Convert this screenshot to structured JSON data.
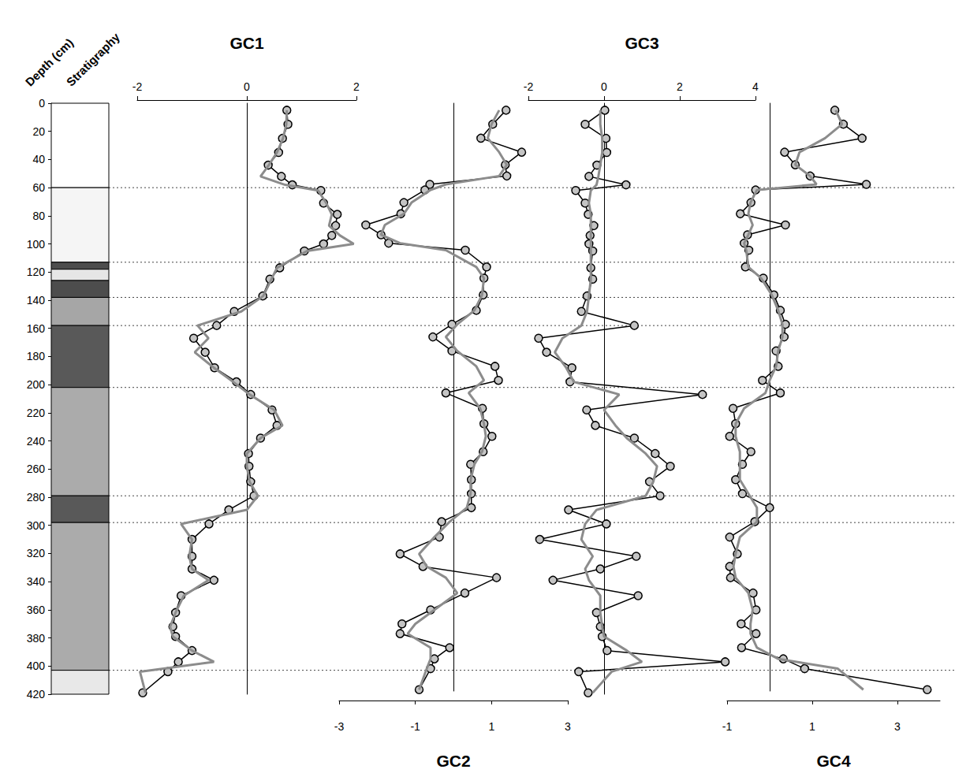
{
  "chart_data": {
    "type": "line",
    "y_label": "Depth (cm)",
    "column_label": "Stratigraphy",
    "ylim": [
      0,
      420
    ],
    "yticks": [
      0,
      20,
      40,
      60,
      80,
      100,
      120,
      140,
      160,
      180,
      200,
      220,
      240,
      260,
      280,
      300,
      320,
      340,
      360,
      380,
      400,
      420
    ],
    "grid": false,
    "y": [
      5,
      15,
      25,
      35,
      44,
      52,
      58,
      62,
      71,
      79,
      87,
      94,
      100,
      105,
      117,
      125,
      137,
      148,
      158,
      167,
      177,
      188,
      198,
      207,
      218,
      229,
      238,
      249,
      258,
      269,
      279,
      289,
      299,
      310,
      322,
      331,
      339,
      350,
      362,
      372,
      379,
      389,
      397,
      404,
      419
    ],
    "boundaries": [
      60,
      113,
      138,
      158,
      202,
      279,
      298,
      403
    ],
    "strata": [
      {
        "top": 0,
        "bottom": 60,
        "color": "#ffffff"
      },
      {
        "top": 60,
        "bottom": 113,
        "color": "#f5f5f5"
      },
      {
        "top": 113,
        "bottom": 118,
        "color": "#4d4d4d"
      },
      {
        "top": 118,
        "bottom": 126,
        "color": "#e6e6e6"
      },
      {
        "top": 126,
        "bottom": 138,
        "color": "#4d4d4d"
      },
      {
        "top": 138,
        "bottom": 158,
        "color": "#a6a6a6"
      },
      {
        "top": 158,
        "bottom": 202,
        "color": "#595959"
      },
      {
        "top": 202,
        "bottom": 279,
        "color": "#ababab"
      },
      {
        "top": 279,
        "bottom": 298,
        "color": "#595959"
      },
      {
        "top": 298,
        "bottom": 403,
        "color": "#ababab"
      },
      {
        "top": 403,
        "bottom": 420,
        "color": "#e8e8e8"
      }
    ],
    "panels": [
      {
        "title": "GC1",
        "xlim": [
          -2,
          2
        ],
        "xticks": [
          -2,
          0,
          2
        ],
        "series": [
          {
            "color": "#000000",
            "marker": "circle",
            "line_style": "solid",
            "values": [
              0.73,
              0.75,
              0.65,
              0.58,
              0.39,
              0.63,
              0.83,
              1.35,
              1.4,
              1.65,
              1.62,
              1.55,
              1.4,
              1.05,
              0.6,
              0.42,
              0.29,
              -0.23,
              -0.55,
              -0.97,
              -0.76,
              -0.59,
              -0.19,
              0.07,
              0.46,
              0.55,
              0.25,
              0.03,
              0.04,
              0.07,
              0.13,
              -0.33,
              -0.69,
              -1.0,
              -1.0,
              -1.0,
              -0.6,
              -1.2,
              -1.3,
              -1.35,
              -1.3,
              -1.0,
              -1.25,
              -1.44,
              -1.9
            ]
          },
          {
            "color": "#8c8c8c",
            "marker": "none",
            "line_style": "solid",
            "values": [
              0.73,
              0.72,
              0.66,
              0.55,
              0.4,
              0.25,
              0.7,
              1.3,
              1.45,
              1.55,
              1.5,
              1.7,
              1.95,
              1.1,
              0.55,
              0.45,
              0.3,
              -0.1,
              -0.9,
              -0.7,
              -0.95,
              -0.6,
              -0.25,
              0.05,
              0.5,
              0.65,
              0.25,
              0.0,
              0.0,
              0.05,
              0.2,
              0.0,
              -1.2,
              -1.0,
              -1.05,
              -1.0,
              -0.7,
              -1.15,
              -1.3,
              -1.4,
              -1.35,
              -1.0,
              -0.6,
              -1.95,
              -1.85
            ]
          }
        ]
      },
      {
        "title": "GC2",
        "xlim": [
          -3,
          3
        ],
        "xticks": [
          -3,
          -1,
          1,
          3
        ],
        "series": [
          {
            "color": "#000000",
            "marker": "circle",
            "line_style": "solid",
            "values": [
              1.38,
              1.03,
              0.72,
              1.79,
              1.36,
              1.4,
              -0.62,
              -0.75,
              -1.3,
              -1.38,
              -2.3,
              -1.9,
              -1.7,
              0.31,
              0.87,
              0.8,
              0.78,
              0.6,
              -0.04,
              -0.54,
              -0.04,
              1.09,
              1.18,
              -0.2,
              0.76,
              0.8,
              1.01,
              0.78,
              0.45,
              0.47,
              0.47,
              0.47,
              -0.31,
              -0.37,
              -1.4,
              -0.8,
              1.13,
              0.3,
              -0.6,
              -1.35,
              -1.4,
              -0.1,
              -0.5,
              -0.6,
              -0.9
            ]
          },
          {
            "color": "#8c8c8c",
            "marker": "none",
            "line_style": "solid",
            "values": [
              1.2,
              1.0,
              0.9,
              1.2,
              1.4,
              1.2,
              -0.2,
              -0.6,
              -1.1,
              -1.3,
              -1.8,
              -1.9,
              -1.4,
              -0.2,
              0.6,
              0.8,
              0.75,
              0.55,
              0.1,
              -0.2,
              0.1,
              0.6,
              0.8,
              0.4,
              0.7,
              0.8,
              0.85,
              0.75,
              0.55,
              0.45,
              0.45,
              0.35,
              -0.1,
              -0.5,
              -0.9,
              -0.7,
              -0.2,
              0.1,
              -0.5,
              -1.0,
              -1.2,
              -0.6,
              -0.6,
              -0.7,
              -0.9
            ]
          }
        ]
      },
      {
        "title": "GC3",
        "xlim": [
          -2,
          4
        ],
        "xticks": [
          -2,
          0,
          2,
          4
        ],
        "series": [
          {
            "color": "#000000",
            "marker": "circle",
            "line_style": "solid",
            "values": [
              0.02,
              -0.5,
              0.05,
              0.07,
              -0.19,
              -0.4,
              0.58,
              -0.75,
              -0.5,
              -0.42,
              -0.27,
              -0.37,
              -0.4,
              -0.3,
              -0.35,
              -0.3,
              -0.45,
              -0.6,
              0.8,
              -1.73,
              -1.52,
              -0.85,
              -0.9,
              2.6,
              -0.46,
              -0.23,
              0.8,
              1.35,
              1.75,
              1.2,
              1.48,
              -0.94,
              0.06,
              -1.7,
              0.85,
              -0.1,
              -1.35,
              0.9,
              -0.2,
              -0.1,
              -0.05,
              0.08,
              3.2,
              -0.67,
              -0.42
            ]
          },
          {
            "color": "#8c8c8c",
            "marker": "none",
            "line_style": "solid",
            "values": [
              -0.1,
              -0.1,
              -0.05,
              -0.05,
              -0.1,
              -0.15,
              -0.2,
              -0.35,
              -0.4,
              -0.35,
              -0.35,
              -0.35,
              -0.35,
              -0.35,
              -0.35,
              -0.35,
              -0.4,
              -0.45,
              -0.6,
              -1.1,
              -1.3,
              -1.0,
              -0.8,
              0.4,
              0.0,
              0.3,
              0.6,
              1.1,
              1.4,
              1.3,
              1.1,
              -0.2,
              -0.5,
              -0.6,
              -0.3,
              -0.5,
              -0.4,
              -0.1,
              -0.1,
              -0.05,
              0.0,
              0.6,
              1.0,
              0.2,
              -0.3
            ]
          }
        ]
      },
      {
        "title": "GC4",
        "xlim": [
          -1,
          4
        ],
        "xticks": [
          -1,
          1,
          3
        ],
        "series": [
          {
            "color": "#000000",
            "marker": "circle",
            "line_style": "solid",
            "values": [
              1.53,
              1.73,
              2.17,
              0.35,
              0.6,
              0.95,
              2.27,
              -0.33,
              -0.44,
              -0.69,
              0.37,
              -0.52,
              -0.6,
              -0.49,
              -0.57,
              -0.15,
              0.1,
              0.25,
              0.37,
              0.34,
              0.15,
              0.2,
              -0.17,
              0.25,
              -0.86,
              -0.8,
              -0.94,
              -0.44,
              -0.64,
              -0.8,
              -0.64,
              0.0,
              -0.35,
              -0.94,
              -0.76,
              -0.94,
              -0.92,
              -0.39,
              -0.32,
              -0.67,
              -0.32,
              -0.66,
              0.32,
              0.82,
              3.7
            ]
          },
          {
            "color": "#8c8c8c",
            "marker": "none",
            "line_style": "solid",
            "values": [
              1.55,
              1.7,
              1.3,
              0.7,
              0.6,
              0.95,
              1.1,
              -0.3,
              -0.45,
              -0.5,
              -0.4,
              -0.5,
              -0.6,
              -0.55,
              -0.5,
              -0.2,
              0.05,
              0.2,
              0.3,
              0.3,
              0.2,
              0.15,
              0.0,
              -0.1,
              -0.6,
              -0.8,
              -0.8,
              -0.7,
              -0.7,
              -0.7,
              -0.5,
              -0.3,
              -0.3,
              -0.7,
              -0.8,
              -0.85,
              -0.8,
              -0.5,
              -0.4,
              -0.45,
              -0.45,
              -0.3,
              0.2,
              1.6,
              2.2
            ]
          }
        ]
      }
    ]
  }
}
